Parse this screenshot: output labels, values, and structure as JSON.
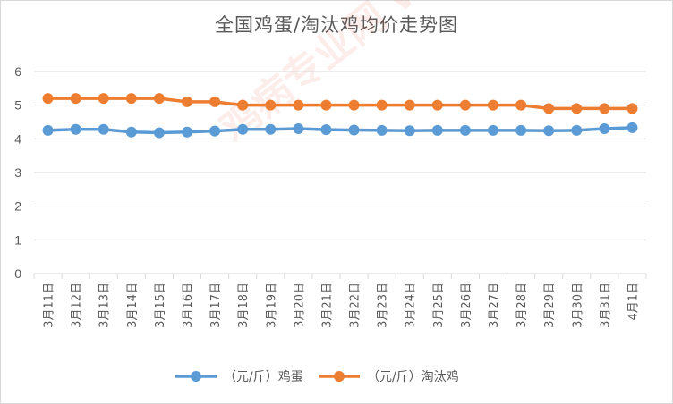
{
  "chart_data": {
    "type": "line",
    "title": "全国鸡蛋/淘汰鸡均价走势图",
    "xlabel": "",
    "ylabel": "",
    "ylim": [
      0,
      6
    ],
    "yticks": [
      "0",
      "1",
      "2",
      "3",
      "4",
      "5",
      "6"
    ],
    "grid": true,
    "legend_position": "bottom",
    "categories": [
      "3月11日",
      "3月12日",
      "3月13日",
      "3月14日",
      "3月15日",
      "3月16日",
      "3月17日",
      "3月18日",
      "3月19日",
      "3月20日",
      "3月21日",
      "3月22日",
      "3月23日",
      "3月24日",
      "3月25日",
      "3月26日",
      "3月27日",
      "3月28日",
      "3月29日",
      "3月30日",
      "3月31日",
      "4月1日"
    ],
    "series": [
      {
        "name": "（元/斤）鸡蛋",
        "color": "#5b9bd5",
        "values": [
          4.25,
          4.28,
          4.28,
          4.2,
          4.18,
          4.2,
          4.23,
          4.28,
          4.28,
          4.3,
          4.27,
          4.26,
          4.25,
          4.24,
          4.25,
          4.25,
          4.25,
          4.25,
          4.24,
          4.25,
          4.3,
          4.33
        ]
      },
      {
        "name": "（元/斤）淘汰鸡",
        "color": "#ed7d31",
        "values": [
          5.2,
          5.2,
          5.2,
          5.2,
          5.2,
          5.1,
          5.1,
          5.0,
          5.0,
          5.0,
          5.0,
          5.0,
          5.0,
          5.0,
          5.0,
          5.0,
          5.0,
          5.0,
          4.9,
          4.9,
          4.9,
          4.9
        ]
      }
    ]
  },
  "watermark": "鸡病专业网 www.jbzyw.com"
}
